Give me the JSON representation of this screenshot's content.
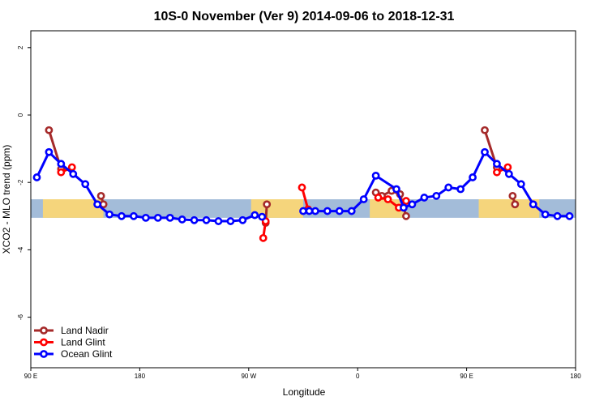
{
  "chart_data": {
    "type": "line",
    "title": "10S-0 November (Ver 9)   2014-09-06 to 2018-12-31",
    "xlabel": "Longitude",
    "ylabel": "XCO2 - MLO trend (ppm)",
    "xlim": [
      90,
      450
    ],
    "ylim": [
      -7.5,
      2.5
    ],
    "x_ticks": [
      {
        "value": 90,
        "label": "90 E"
      },
      {
        "value": 180,
        "label": "180"
      },
      {
        "value": 270,
        "label": "90 W"
      },
      {
        "value": 360,
        "label": "0"
      },
      {
        "value": 450,
        "label": "90 E"
      },
      {
        "value": 540,
        "label": "180"
      }
    ],
    "y_ticks": [
      {
        "value": 2,
        "label": "2"
      },
      {
        "value": 0,
        "label": "0"
      },
      {
        "value": -2,
        "label": "-2"
      },
      {
        "value": -4,
        "label": "-4"
      },
      {
        "value": -6,
        "label": "-6"
      }
    ],
    "map_band": {
      "y_range": [
        -3.05,
        -2.5
      ],
      "ocean_color": "#a3bcd9",
      "land_color": "#f5d57c"
    },
    "legend_position": "bottom-left",
    "series": [
      {
        "name": "Land Nadir",
        "color": "#a52a2a",
        "segments": [
          [
            [
              105,
              -0.45
            ],
            [
              115,
              -1.6
            ]
          ],
          [
            [
              148,
              -2.4
            ],
            [
              150,
              -2.65
            ]
          ],
          [
            [
              285,
              -2.65
            ],
            [
              284,
              -3.2
            ]
          ],
          [
            [
              375,
              -2.3
            ],
            [
              380,
              -2.4
            ],
            [
              388,
              -2.25
            ],
            [
              395,
              -2.35
            ],
            [
              400,
              -3.0
            ]
          ],
          [
            [
              465,
              -0.45
            ],
            [
              475,
              -1.55
            ]
          ],
          [
            [
              488,
              -2.4
            ],
            [
              490,
              -2.65
            ]
          ]
        ]
      },
      {
        "name": "Land Glint",
        "color": "#ff0000",
        "segments": [
          [
            [
              115,
              -1.7
            ],
            [
              124,
              -1.55
            ]
          ],
          [
            [
              282,
              -3.65
            ],
            [
              284,
              -3.15
            ]
          ],
          [
            [
              314,
              -2.15
            ],
            [
              319,
              -2.8
            ]
          ],
          [
            [
              377,
              -2.45
            ],
            [
              385,
              -2.5
            ],
            [
              394,
              -2.75
            ],
            [
              400,
              -2.55
            ]
          ],
          [
            [
              475,
              -1.7
            ],
            [
              484,
              -1.55
            ]
          ]
        ]
      },
      {
        "name": "Ocean Glint",
        "color": "#0000ff",
        "points": [
          [
            95,
            -1.85
          ],
          [
            105,
            -1.1
          ],
          [
            115,
            -1.45
          ],
          [
            125,
            -1.75
          ],
          [
            135,
            -2.05
          ],
          [
            145,
            -2.65
          ],
          [
            155,
            -2.95
          ],
          [
            165,
            -3.0
          ],
          [
            175,
            -3.0
          ],
          [
            185,
            -3.05
          ],
          [
            195,
            -3.05
          ],
          [
            205,
            -3.05
          ],
          [
            215,
            -3.1
          ],
          [
            225,
            -3.12
          ],
          [
            235,
            -3.12
          ],
          [
            245,
            -3.15
          ],
          [
            255,
            -3.15
          ],
          [
            265,
            -3.12
          ],
          [
            275,
            -2.97
          ],
          [
            281,
            -3.02
          ]
        ],
        "points_b": [
          [
            315,
            -2.85
          ],
          [
            320,
            -2.85
          ],
          [
            325,
            -2.85
          ],
          [
            335,
            -2.85
          ],
          [
            345,
            -2.85
          ],
          [
            355,
            -2.85
          ],
          [
            365,
            -2.5
          ],
          [
            375,
            -1.8
          ],
          [
            392,
            -2.2
          ],
          [
            398,
            -2.75
          ],
          [
            405,
            -2.65
          ],
          [
            415,
            -2.45
          ],
          [
            425,
            -2.4
          ],
          [
            435,
            -2.15
          ],
          [
            445,
            -2.2
          ],
          [
            455,
            -1.85
          ],
          [
            465,
            -1.1
          ],
          [
            475,
            -1.45
          ],
          [
            485,
            -1.75
          ],
          [
            495,
            -2.05
          ],
          [
            505,
            -2.65
          ],
          [
            515,
            -2.95
          ],
          [
            525,
            -3.0
          ],
          [
            535,
            -3.0
          ]
        ]
      }
    ]
  }
}
